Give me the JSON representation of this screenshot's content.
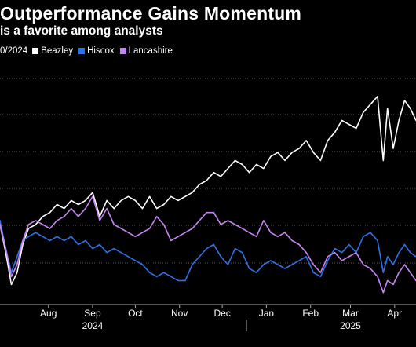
{
  "header": {
    "title": "Outperformance Gains Momentum",
    "subtitle": "is a favorite among analysts",
    "legend_lead": "0/2024"
  },
  "chart_data": {
    "type": "line",
    "title": "Outperformance Gains Momentum",
    "subtitle": "is a favorite among analysts",
    "xlabel": "",
    "ylabel": "",
    "x_range": [
      "2024-07-12",
      "2025-04-30"
    ],
    "grid": true,
    "legend_position": "top-left",
    "months": [
      {
        "label": "Aug",
        "date": "2024-08-15"
      },
      {
        "label": "Sep",
        "date": "2024-09-15"
      },
      {
        "label": "Oct",
        "date": "2024-10-15"
      },
      {
        "label": "Nov",
        "date": "2024-11-15"
      },
      {
        "label": "Dec",
        "date": "2024-12-15"
      },
      {
        "label": "Jan",
        "date": "2025-01-15"
      },
      {
        "label": "Feb",
        "date": "2025-02-15"
      },
      {
        "label": "Mar",
        "date": "2025-03-15"
      },
      {
        "label": "Apr",
        "date": "2025-04-15"
      }
    ],
    "years": [
      {
        "label": "2024",
        "date": "2024-09-15"
      },
      {
        "label": "2025",
        "date": "2025-03-15"
      }
    ],
    "year_divider": "2025-01-01",
    "series": [
      {
        "name": "Beazley",
        "color": "#ffffff",
        "points": [
          [
            "2024-07-12",
            100
          ],
          [
            "2024-07-16",
            93
          ],
          [
            "2024-07-20",
            85
          ],
          [
            "2024-07-24",
            88
          ],
          [
            "2024-07-28",
            95
          ],
          [
            "2024-08-01",
            99
          ],
          [
            "2024-08-06",
            100
          ],
          [
            "2024-08-11",
            102
          ],
          [
            "2024-08-16",
            103
          ],
          [
            "2024-08-21",
            105
          ],
          [
            "2024-08-26",
            104
          ],
          [
            "2024-08-31",
            106
          ],
          [
            "2024-09-05",
            105
          ],
          [
            "2024-09-10",
            106
          ],
          [
            "2024-09-15",
            108
          ],
          [
            "2024-09-20",
            102
          ],
          [
            "2024-09-25",
            106
          ],
          [
            "2024-09-30",
            104
          ],
          [
            "2024-10-05",
            106
          ],
          [
            "2024-10-10",
            107
          ],
          [
            "2024-10-15",
            106
          ],
          [
            "2024-10-20",
            104
          ],
          [
            "2024-10-25",
            107
          ],
          [
            "2024-10-30",
            104
          ],
          [
            "2024-11-04",
            105
          ],
          [
            "2024-11-09",
            107
          ],
          [
            "2024-11-14",
            106
          ],
          [
            "2024-11-19",
            107
          ],
          [
            "2024-11-24",
            108
          ],
          [
            "2024-11-29",
            110
          ],
          [
            "2024-12-04",
            111
          ],
          [
            "2024-12-09",
            113
          ],
          [
            "2024-12-14",
            112
          ],
          [
            "2024-12-19",
            114
          ],
          [
            "2024-12-24",
            116
          ],
          [
            "2024-12-29",
            115
          ],
          [
            "2025-01-03",
            113
          ],
          [
            "2025-01-08",
            115
          ],
          [
            "2025-01-13",
            114
          ],
          [
            "2025-01-18",
            117
          ],
          [
            "2025-01-23",
            118
          ],
          [
            "2025-01-28",
            116
          ],
          [
            "2025-02-02",
            118
          ],
          [
            "2025-02-07",
            119
          ],
          [
            "2025-02-12",
            121
          ],
          [
            "2025-02-17",
            118
          ],
          [
            "2025-02-22",
            116
          ],
          [
            "2025-02-27",
            121
          ],
          [
            "2025-03-04",
            123
          ],
          [
            "2025-03-09",
            126
          ],
          [
            "2025-03-14",
            125
          ],
          [
            "2025-03-19",
            124
          ],
          [
            "2025-03-24",
            128
          ],
          [
            "2025-03-29",
            130
          ],
          [
            "2025-04-03",
            132
          ],
          [
            "2025-04-07",
            116
          ],
          [
            "2025-04-10",
            129
          ],
          [
            "2025-04-14",
            119
          ],
          [
            "2025-04-18",
            126
          ],
          [
            "2025-04-22",
            131
          ],
          [
            "2025-04-26",
            129
          ],
          [
            "2025-04-30",
            126
          ]
        ]
      },
      {
        "name": "Hiscox",
        "color": "#2e72e6",
        "points": [
          [
            "2024-07-12",
            101
          ],
          [
            "2024-07-16",
            94
          ],
          [
            "2024-07-20",
            88
          ],
          [
            "2024-07-24",
            92
          ],
          [
            "2024-07-28",
            96
          ],
          [
            "2024-08-01",
            97
          ],
          [
            "2024-08-06",
            98
          ],
          [
            "2024-08-11",
            97
          ],
          [
            "2024-08-16",
            96
          ],
          [
            "2024-08-21",
            97
          ],
          [
            "2024-08-26",
            96
          ],
          [
            "2024-08-31",
            97
          ],
          [
            "2024-09-05",
            95
          ],
          [
            "2024-09-10",
            96
          ],
          [
            "2024-09-15",
            94
          ],
          [
            "2024-09-20",
            95
          ],
          [
            "2024-09-25",
            93
          ],
          [
            "2024-09-30",
            94
          ],
          [
            "2024-10-05",
            93
          ],
          [
            "2024-10-10",
            92
          ],
          [
            "2024-10-15",
            91
          ],
          [
            "2024-10-20",
            90
          ],
          [
            "2024-10-25",
            88
          ],
          [
            "2024-10-30",
            87
          ],
          [
            "2024-11-04",
            88
          ],
          [
            "2024-11-09",
            87
          ],
          [
            "2024-11-14",
            86
          ],
          [
            "2024-11-19",
            86
          ],
          [
            "2024-11-24",
            90
          ],
          [
            "2024-11-29",
            92
          ],
          [
            "2024-12-04",
            94
          ],
          [
            "2024-12-09",
            95
          ],
          [
            "2024-12-14",
            92
          ],
          [
            "2024-12-19",
            90
          ],
          [
            "2024-12-24",
            94
          ],
          [
            "2024-12-29",
            93
          ],
          [
            "2025-01-03",
            89
          ],
          [
            "2025-01-08",
            88
          ],
          [
            "2025-01-13",
            90
          ],
          [
            "2025-01-18",
            91
          ],
          [
            "2025-01-23",
            90
          ],
          [
            "2025-01-28",
            89
          ],
          [
            "2025-02-02",
            90
          ],
          [
            "2025-02-07",
            91
          ],
          [
            "2025-02-12",
            92
          ],
          [
            "2025-02-17",
            88
          ],
          [
            "2025-02-22",
            87
          ],
          [
            "2025-02-27",
            91
          ],
          [
            "2025-03-04",
            94
          ],
          [
            "2025-03-09",
            93
          ],
          [
            "2025-03-14",
            95
          ],
          [
            "2025-03-19",
            93
          ],
          [
            "2025-03-24",
            97
          ],
          [
            "2025-03-29",
            98
          ],
          [
            "2025-04-03",
            96
          ],
          [
            "2025-04-07",
            88
          ],
          [
            "2025-04-10",
            92
          ],
          [
            "2025-04-14",
            90
          ],
          [
            "2025-04-18",
            93
          ],
          [
            "2025-04-22",
            95
          ],
          [
            "2025-04-26",
            93
          ],
          [
            "2025-04-30",
            92
          ]
        ]
      },
      {
        "name": "Lancashire",
        "color": "#c686f0",
        "points": [
          [
            "2024-07-12",
            100
          ],
          [
            "2024-07-16",
            94
          ],
          [
            "2024-07-20",
            87
          ],
          [
            "2024-07-24",
            90
          ],
          [
            "2024-07-28",
            96
          ],
          [
            "2024-08-01",
            100
          ],
          [
            "2024-08-06",
            101
          ],
          [
            "2024-08-11",
            100
          ],
          [
            "2024-08-16",
            99
          ],
          [
            "2024-08-21",
            101
          ],
          [
            "2024-08-26",
            102
          ],
          [
            "2024-08-31",
            104
          ],
          [
            "2024-09-05",
            102
          ],
          [
            "2024-09-10",
            104
          ],
          [
            "2024-09-15",
            107
          ],
          [
            "2024-09-20",
            101
          ],
          [
            "2024-09-25",
            104
          ],
          [
            "2024-09-30",
            100
          ],
          [
            "2024-10-05",
            99
          ],
          [
            "2024-10-10",
            98
          ],
          [
            "2024-10-15",
            97
          ],
          [
            "2024-10-20",
            98
          ],
          [
            "2024-10-25",
            99
          ],
          [
            "2024-10-30",
            102
          ],
          [
            "2024-11-04",
            100
          ],
          [
            "2024-11-09",
            96
          ],
          [
            "2024-11-14",
            97
          ],
          [
            "2024-11-19",
            98
          ],
          [
            "2024-11-24",
            99
          ],
          [
            "2024-11-29",
            101
          ],
          [
            "2024-12-04",
            103
          ],
          [
            "2024-12-09",
            103
          ],
          [
            "2024-12-14",
            100
          ],
          [
            "2024-12-19",
            101
          ],
          [
            "2024-12-24",
            100
          ],
          [
            "2024-12-29",
            99
          ],
          [
            "2025-01-03",
            98
          ],
          [
            "2025-01-08",
            97
          ],
          [
            "2025-01-13",
            101
          ],
          [
            "2025-01-18",
            98
          ],
          [
            "2025-01-23",
            97
          ],
          [
            "2025-01-28",
            98
          ],
          [
            "2025-02-02",
            96
          ],
          [
            "2025-02-07",
            95
          ],
          [
            "2025-02-12",
            93
          ],
          [
            "2025-02-17",
            90
          ],
          [
            "2025-02-22",
            88
          ],
          [
            "2025-02-27",
            92
          ],
          [
            "2025-03-04",
            93
          ],
          [
            "2025-03-09",
            91
          ],
          [
            "2025-03-14",
            92
          ],
          [
            "2025-03-19",
            93
          ],
          [
            "2025-03-24",
            90
          ],
          [
            "2025-03-29",
            89
          ],
          [
            "2025-04-03",
            87
          ],
          [
            "2025-04-07",
            83
          ],
          [
            "2025-04-10",
            86
          ],
          [
            "2025-04-14",
            85
          ],
          [
            "2025-04-18",
            88
          ],
          [
            "2025-04-22",
            90
          ],
          [
            "2025-04-26",
            88
          ],
          [
            "2025-04-30",
            86
          ]
        ]
      }
    ]
  }
}
